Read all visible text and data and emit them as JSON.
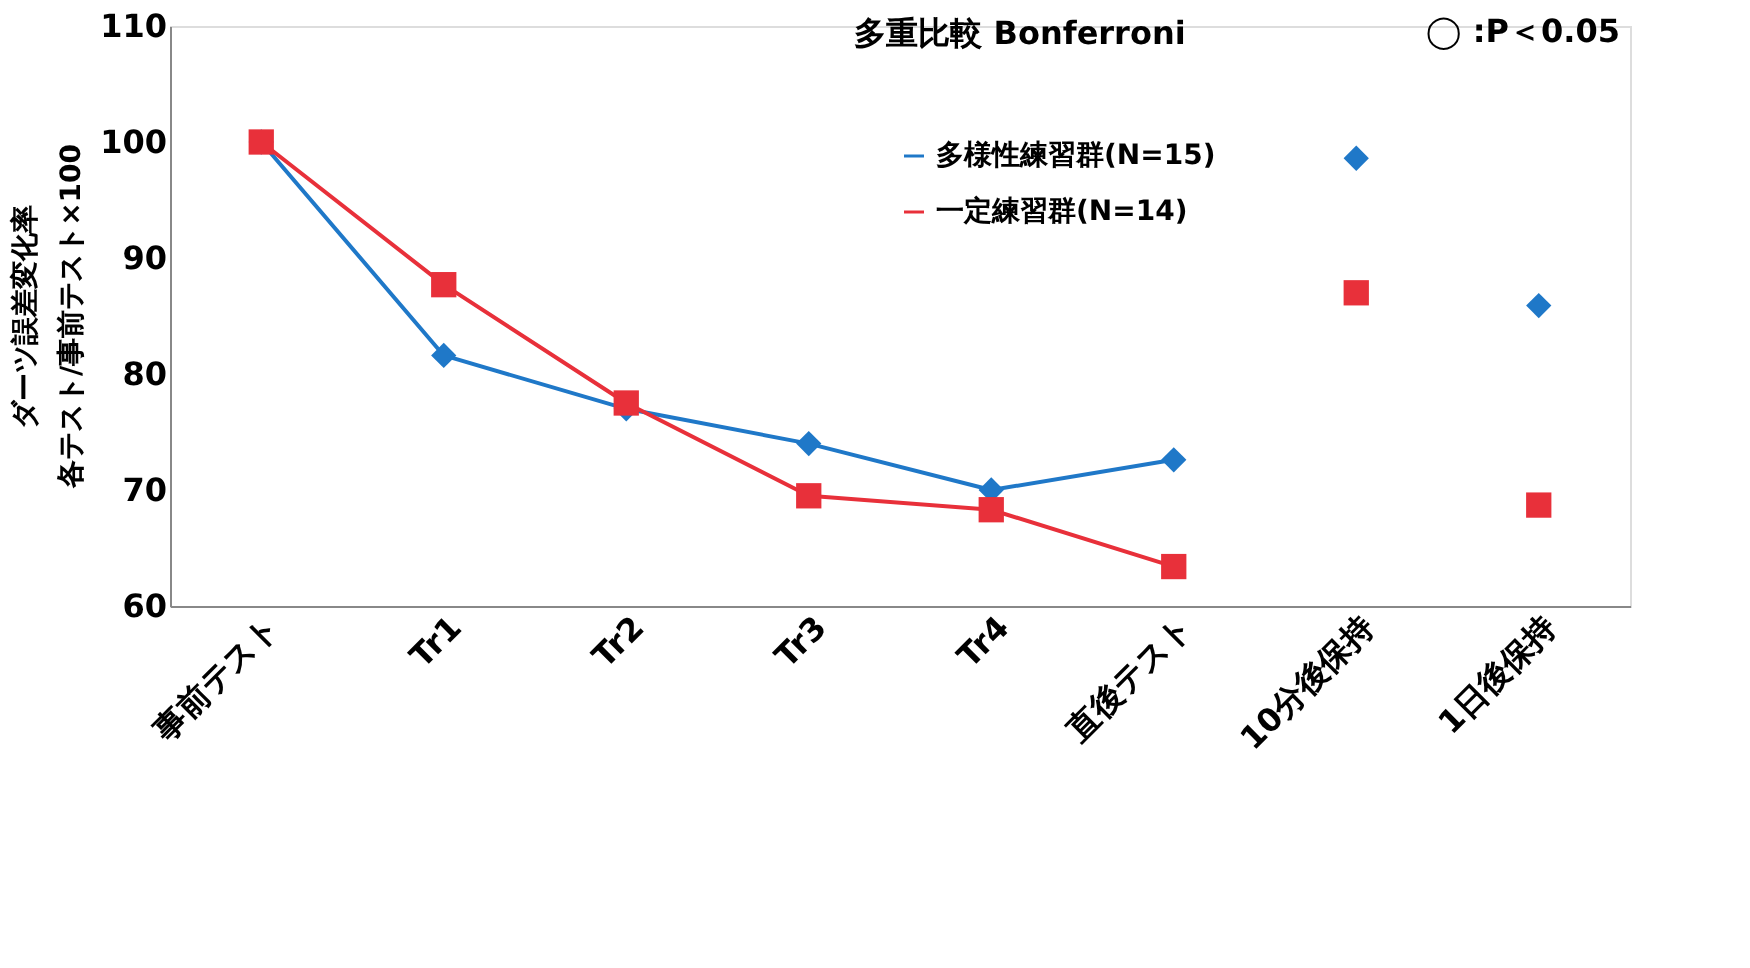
{
  "chart_data": {
    "type": "line",
    "title": "多重比較  Bonferroni",
    "ylabel": "ダーツ誤差変化率",
    "categories": [
      "事前テスト",
      "Tr1",
      "Tr2",
      "Tr3",
      "Tr4",
      "直後テスト",
      "10分後保持",
      "1日後保持"
    ],
    "series": [
      {
        "name": "多様性練習群(N=15)",
        "color": "#1f78c8",
        "marker": "diamond",
        "values": [
          100,
          81.6,
          77.0,
          74.0,
          70.0,
          72.6,
          null,
          null
        ]
      },
      {
        "name": "一定練習群(N=14)",
        "color": "#e8303a",
        "marker": "square",
        "values": [
          100,
          87.7,
          77.5,
          69.5,
          68.3,
          63.4,
          null,
          null
        ]
      },
      {
        "type": "scatter",
        "color": "#1f78c8",
        "marker": "diamond",
        "values": [
          null,
          null,
          null,
          null,
          null,
          null,
          98.6,
          85.9
        ]
      },
      {
        "type": "scatter",
        "color": "#e8303a",
        "marker": "square",
        "values": [
          null,
          null,
          null,
          null,
          null,
          null,
          87.0,
          68.7
        ]
      }
    ],
    "annotations": [
      "◯ :P＜0.05",
      "各テスト/事前テスト×100"
    ],
    "ylim": [
      60,
      110
    ],
    "yticks": [
      60,
      70,
      80,
      90,
      100,
      110
    ],
    "grid": false,
    "legend": "top right"
  }
}
